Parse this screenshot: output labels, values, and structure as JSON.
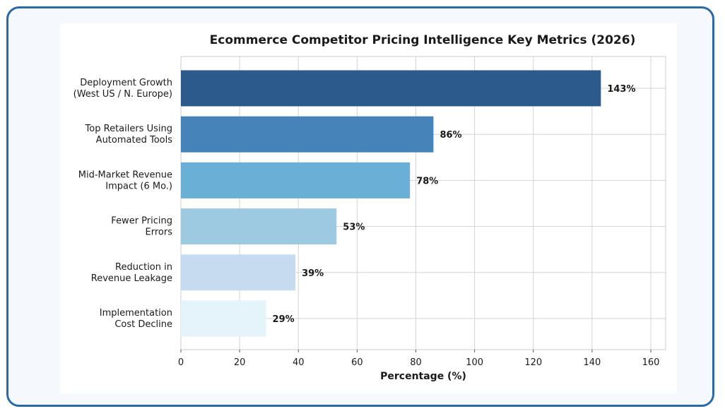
{
  "chart_data": {
    "type": "bar",
    "orientation": "horizontal",
    "title": "Ecommerce Competitor Pricing Intelligence Key Metrics (2026)",
    "xlabel": "Percentage (%)",
    "ylabel": "",
    "xlim": [
      0,
      165
    ],
    "xticks": [
      0,
      20,
      40,
      60,
      80,
      100,
      120,
      140,
      160
    ],
    "grid": true,
    "categories": [
      [
        "Deployment Growth",
        "(West US / N. Europe)"
      ],
      [
        "Top Retailers Using",
        "Automated Tools"
      ],
      [
        "Mid-Market Revenue",
        "Impact (6 Mo.)"
      ],
      [
        "Fewer Pricing",
        "Errors"
      ],
      [
        "Reduction in",
        "Revenue Leakage"
      ],
      [
        "Implementation",
        "Cost Decline"
      ]
    ],
    "values": [
      143,
      86,
      78,
      53,
      39,
      29
    ],
    "data_labels": [
      "143%",
      "86%",
      "78%",
      "53%",
      "39%",
      "29%"
    ],
    "colors": [
      "#2c5a8c",
      "#4683b8",
      "#6aafd6",
      "#9ecae1",
      "#c6dbef",
      "#e5f3fa"
    ]
  }
}
